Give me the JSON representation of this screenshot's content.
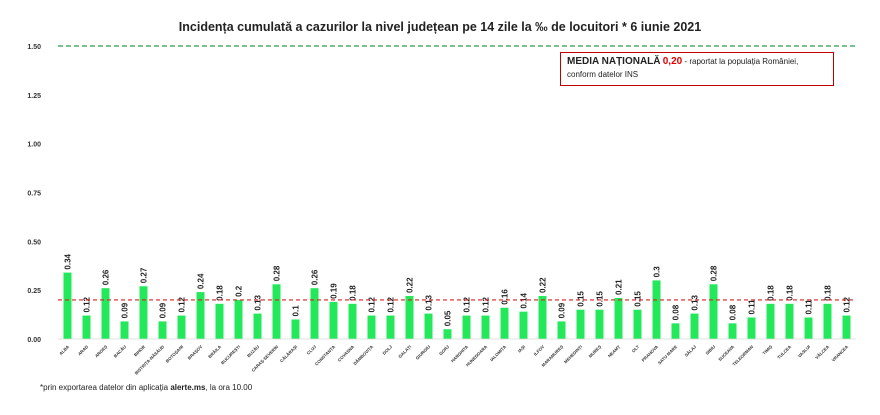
{
  "header": {
    "title": "Incidența cumulată a cazurilor la nivel județean pe 14 zile la ‰ de locuitori *  6 iunie 2021"
  },
  "legend": {
    "label_bold": "MEDIA NAȚIONALĂ",
    "value": "0,20",
    "text_line1": " - raportat la populația României,",
    "text_line2": "conform datelor INS"
  },
  "footnote": {
    "prefix": "*prin exportarea datelor din aplicația ",
    "source": "alerte.ms",
    "suffix": ", la ora 10.00"
  },
  "colors": {
    "bar": "#22e85a",
    "threshold_line": "#2a9d4a",
    "national_avg_line": "#d62020",
    "legend_border": "#c00000"
  },
  "chart_data": {
    "type": "bar",
    "title": "Incidența cumulată a cazurilor la nivel județean pe 14 zile la ‰ de locuitori *  6 iunie 2021",
    "xlabel": "",
    "ylabel": "",
    "ylim": [
      0,
      1.5
    ],
    "yticks": [
      "0.00",
      "0.25",
      "0.50",
      "0.75",
      "1.00",
      "1.25",
      "1.50"
    ],
    "grid": false,
    "reference_lines": [
      {
        "value": 1.5,
        "style": "dashed",
        "color": "green"
      },
      {
        "value": 0.2,
        "style": "dashed",
        "color": "red"
      }
    ],
    "categories": [
      "ALBA",
      "ARAD",
      "ARGEȘ",
      "BACĂU",
      "BIHOR",
      "BISTRIȚA-NĂSĂUD",
      "BOTOȘANI",
      "BRAȘOV",
      "BRĂILA",
      "BUCUREȘTI",
      "BUZĂU",
      "CARAȘ-SEVERIN",
      "CĂLĂRAȘI",
      "CLUJ",
      "CONSTANȚA",
      "COVASNA",
      "DÂMBOVIȚA",
      "DOLJ",
      "GALAȚI",
      "GIURGIU",
      "GORJ",
      "HARGHITA",
      "HUNEDOARA",
      "IALOMIȚA",
      "IAȘI",
      "ILFOV",
      "MARAMUREȘ",
      "MEHEDINȚI",
      "MUREȘ",
      "NEAMȚ",
      "OLT",
      "PRAHOVA",
      "SATU MARE",
      "SĂLAJ",
      "SIBIU",
      "SUCEAVA",
      "TELEORMAN",
      "TIMIȘ",
      "TULCEA",
      "VASLUI",
      "VÂLCEA",
      "VRANCEA"
    ],
    "values": [
      0.34,
      0.12,
      0.26,
      0.09,
      0.27,
      0.09,
      0.12,
      0.24,
      0.18,
      0.2,
      0.13,
      0.28,
      0.1,
      0.26,
      0.19,
      0.18,
      0.12,
      0.12,
      0.22,
      0.13,
      0.05,
      0.12,
      0.12,
      0.16,
      0.14,
      0.22,
      0.09,
      0.15,
      0.15,
      0.21,
      0.15,
      0.3,
      0.08,
      0.13,
      0.28,
      0.08,
      0.11,
      0.18,
      0.18,
      0.11,
      0.18,
      0.12
    ],
    "value_labels": [
      "0.34",
      "0.12",
      "0.26",
      "0.09",
      "0.27",
      "0.09",
      "0.12",
      "0.24",
      "0.18",
      "0.2",
      "0.13",
      "0.28",
      "0.1",
      "0.26",
      "0.19",
      "0.18",
      "0.12",
      "0.12",
      "0.22",
      "0.13",
      "0.05",
      "0.12",
      "0.12",
      "0.16",
      "0.14",
      "0.22",
      "0.09",
      "0.15",
      "0.15",
      "0.21",
      "0.15",
      "0.3",
      "0.08",
      "0.13",
      "0.28",
      "0.08",
      "0.11",
      "0.18",
      "0.18",
      "0.11",
      "0.18",
      "0.12"
    ]
  }
}
